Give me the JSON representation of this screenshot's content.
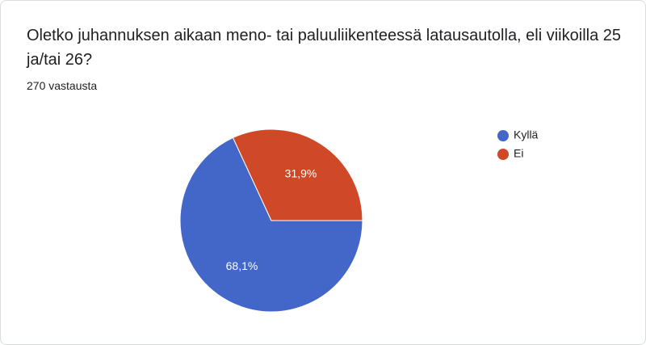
{
  "chart_data": {
    "type": "pie",
    "title": "Oletko juhannuksen aikaan meno- tai paluuliikenteessä latausautolla, eli viikoilla 25 ja/tai 26?",
    "subtitle": "270 vastausta",
    "categories": [
      "Kyllä",
      "Ei"
    ],
    "values": [
      68.1,
      31.9
    ],
    "value_labels": [
      "68,1%",
      "31,9%"
    ],
    "colors": [
      "#4267c8",
      "#cf4827"
    ],
    "legend": "right"
  }
}
